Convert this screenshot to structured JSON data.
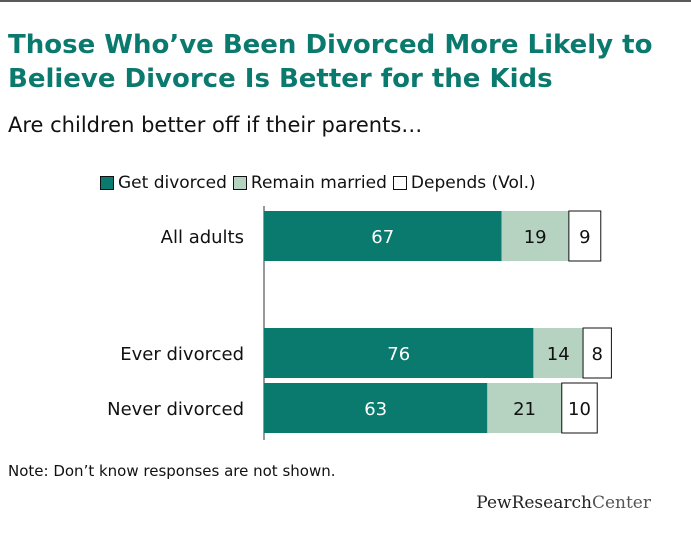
{
  "header": {
    "title": "Those Who’ve Been Divorced More Likely to Believe Divorce Is Better for the Kids",
    "subtitle": "Are children better off if their parents…"
  },
  "colors": {
    "get_divorced": "#0b7a6e",
    "remain_married": "#b6d3c2",
    "depends": "#ffffff"
  },
  "chart_data": {
    "type": "bar",
    "orientation": "horizontal",
    "stacked": true,
    "categories": [
      "All adults",
      "Ever divorced",
      "Never divorced"
    ],
    "series": [
      {
        "name": "Get divorced",
        "values": [
          67,
          76,
          63
        ]
      },
      {
        "name": "Remain married",
        "values": [
          19,
          14,
          21
        ]
      },
      {
        "name": "Depends (Vol.)",
        "values": [
          9,
          8,
          10
        ]
      }
    ],
    "xlim": [
      0,
      100
    ],
    "grid": false,
    "legend": "top"
  },
  "legend": {
    "items": [
      {
        "label": "Get divorced"
      },
      {
        "label": "Remain married"
      },
      {
        "label": "Depends (Vol.)"
      }
    ]
  },
  "footer": {
    "note": "Note: Don’t know responses are not shown.",
    "logo_strong": "PewResearch",
    "logo_light": "Center"
  }
}
